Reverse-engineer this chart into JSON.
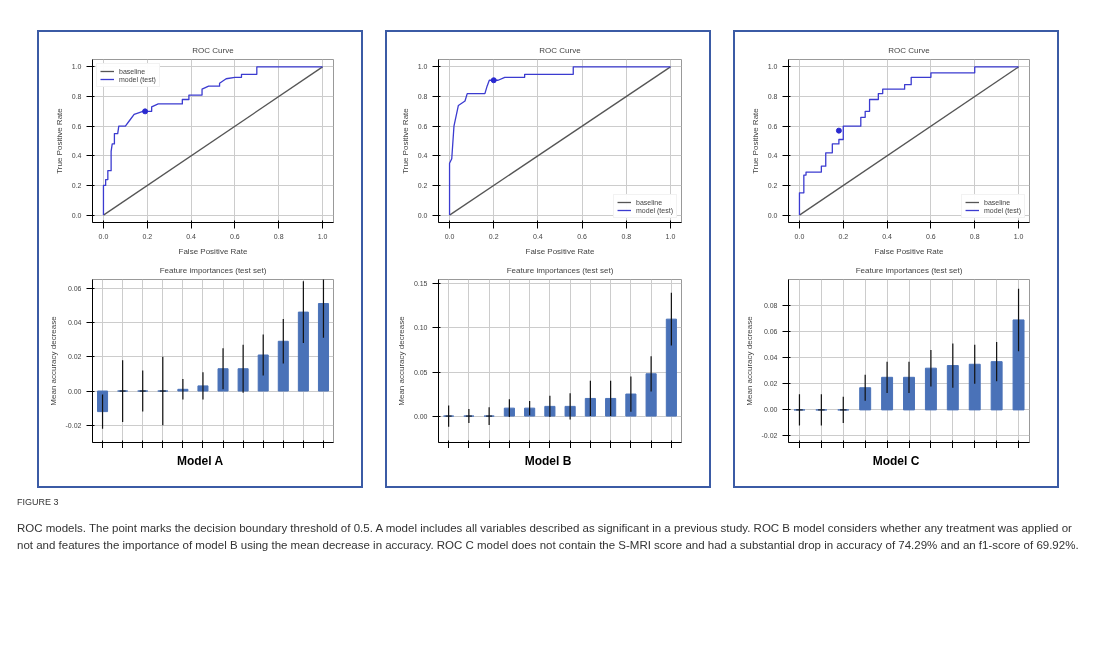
{
  "chart_data": [
    {
      "type": "line",
      "title": "ROC Curve",
      "xlabel": "False Positive Rate",
      "ylabel": "True Positive Rate",
      "xlim": [
        -0.05,
        1.05
      ],
      "ylim": [
        -0.05,
        1.05
      ],
      "xticks": [
        {
          "value": 0,
          "label": "0.0"
        },
        {
          "value": 0.2,
          "label": "0.2"
        },
        {
          "value": 0.4,
          "label": "0.4"
        },
        {
          "value": 0.6,
          "label": "0.6"
        },
        {
          "value": 0.8,
          "label": "0.8"
        },
        {
          "value": 1,
          "label": "1.0"
        }
      ],
      "yticks": [
        {
          "value": 0,
          "label": "0.0"
        },
        {
          "value": 0.2,
          "label": "0.2"
        },
        {
          "value": 0.4,
          "label": "0.4"
        },
        {
          "value": 0.6,
          "label": "0.6"
        },
        {
          "value": 0.8,
          "label": "0.8"
        },
        {
          "value": 1,
          "label": "1.0"
        }
      ],
      "grid": true,
      "legend": "top left",
      "marker": "none",
      "line_style": "solid",
      "series": [
        {
          "name": "baseline",
          "type": "line",
          "color": "#555555",
          "x": [
            0,
            1
          ],
          "values": [
            0,
            1
          ]
        },
        {
          "name": "model (test)",
          "type": "line",
          "color": "#3b3bd0",
          "x": [
            0,
            0,
            0.01,
            0.01,
            0.02,
            0.02,
            0.035,
            0.035,
            0.04,
            0.05,
            0.05,
            0.065,
            0.07,
            0.1,
            0.12,
            0.14,
            0.18,
            0.22,
            0.22,
            0.25,
            0.36,
            0.36,
            0.39,
            0.39,
            0.45,
            0.45,
            0.48,
            0.53,
            0.53,
            0.56,
            0.6,
            0.63,
            0.63,
            0.7,
            0.7,
            1
          ],
          "values": [
            0,
            0.2,
            0.2,
            0.24,
            0.24,
            0.3,
            0.3,
            0.43,
            0.48,
            0.48,
            0.55,
            0.55,
            0.6,
            0.6,
            0.64,
            0.68,
            0.7,
            0.7,
            0.73,
            0.75,
            0.75,
            0.78,
            0.78,
            0.81,
            0.81,
            0.85,
            0.87,
            0.87,
            0.89,
            0.92,
            0.93,
            0.93,
            0.95,
            0.95,
            1,
            1
          ]
        },
        {
          "type": "scatter",
          "color": "#2a2ad0",
          "x": [
            0.19
          ],
          "values": [
            0.7
          ]
        }
      ]
    },
    {
      "type": "bar",
      "title": "Feature importances (test set)",
      "ylabel": "Mean accuracy decrease",
      "categories": [
        null,
        null,
        null,
        null,
        null,
        null,
        null,
        null,
        null,
        null,
        null,
        null
      ],
      "values": [
        -0.012,
        0,
        0,
        0,
        0.001,
        0.003,
        0.013,
        0.013,
        0.021,
        0.029,
        0.046,
        0.051
      ],
      "errors": [
        0.01,
        0.018,
        0.012,
        0.02,
        0.006,
        0.008,
        0.012,
        0.014,
        0.012,
        0.013,
        0.018,
        0.02
      ],
      "color": "#4a72b8",
      "ylim": [
        -0.03,
        0.065
      ],
      "yticks": [
        {
          "value": -0.02,
          "label": "-0.02"
        },
        {
          "value": 0,
          "label": "0.00"
        },
        {
          "value": 0.02,
          "label": "0.02"
        },
        {
          "value": 0.04,
          "label": "0.04"
        },
        {
          "value": 0.06,
          "label": "0.06"
        }
      ],
      "grid": true,
      "tick_labels": "y",
      "annotations": [
        "Model A"
      ]
    },
    {
      "type": "line",
      "title": "ROC Curve",
      "xlabel": "False Positive Rate",
      "ylabel": "True Positive Rate",
      "xlim": [
        -0.05,
        1.05
      ],
      "ylim": [
        -0.05,
        1.05
      ],
      "xticks": [
        {
          "value": 0,
          "label": "0.0"
        },
        {
          "value": 0.2,
          "label": "0.2"
        },
        {
          "value": 0.4,
          "label": "0.4"
        },
        {
          "value": 0.6,
          "label": "0.6"
        },
        {
          "value": 0.8,
          "label": "0.8"
        },
        {
          "value": 1,
          "label": "1.0"
        }
      ],
      "yticks": [
        {
          "value": 0,
          "label": "0.0"
        },
        {
          "value": 0.2,
          "label": "0.2"
        },
        {
          "value": 0.4,
          "label": "0.4"
        },
        {
          "value": 0.6,
          "label": "0.6"
        },
        {
          "value": 0.8,
          "label": "0.8"
        },
        {
          "value": 1,
          "label": "1.0"
        }
      ],
      "grid": true,
      "legend": "bottom right",
      "marker": "none",
      "line_style": "solid",
      "series": [
        {
          "name": "baseline",
          "type": "line",
          "color": "#555555",
          "x": [
            0,
            1
          ],
          "values": [
            0,
            1
          ]
        },
        {
          "name": "model (test)",
          "type": "line",
          "color": "#3b3bd0",
          "x": [
            0,
            0,
            0.01,
            0.02,
            0.04,
            0.05,
            0.07,
            0.08,
            0.16,
            0.17,
            0.18,
            0.22,
            0.25,
            0.34,
            0.34,
            0.56,
            0.56,
            1
          ],
          "values": [
            0,
            0.35,
            0.38,
            0.6,
            0.74,
            0.75,
            0.77,
            0.82,
            0.82,
            0.87,
            0.91,
            0.91,
            0.93,
            0.93,
            0.95,
            0.95,
            1,
            1
          ]
        },
        {
          "type": "scatter",
          "color": "#2a2ad0",
          "x": [
            0.2
          ],
          "values": [
            0.91
          ]
        }
      ]
    },
    {
      "type": "bar",
      "title": "Feature importances (test set)",
      "ylabel": "Mean accuracy decrease",
      "categories": [
        null,
        null,
        null,
        null,
        null,
        null,
        null,
        null,
        null,
        null,
        null,
        null
      ],
      "values": [
        0,
        0,
        0,
        0.009,
        0.009,
        0.011,
        0.011,
        0.02,
        0.02,
        0.025,
        0.048,
        0.11
      ],
      "errors": [
        0.012,
        0.008,
        0.01,
        0.01,
        0.008,
        0.012,
        0.015,
        0.02,
        0.02,
        0.02,
        0.02,
        0.03
      ],
      "color": "#4a72b8",
      "ylim": [
        -0.03,
        0.155
      ],
      "yticks": [
        {
          "value": 0,
          "label": "0.00"
        },
        {
          "value": 0.05,
          "label": "0.05"
        },
        {
          "value": 0.1,
          "label": "0.10"
        },
        {
          "value": 0.15,
          "label": "0.15"
        }
      ],
      "grid": true,
      "tick_labels": "y",
      "annotations": [
        "Model B"
      ]
    },
    {
      "type": "line",
      "title": "ROC Curve",
      "xlabel": "False Positive Rate",
      "ylabel": "True Positive Rate",
      "xlim": [
        -0.05,
        1.05
      ],
      "ylim": [
        -0.05,
        1.05
      ],
      "xticks": [
        {
          "value": 0,
          "label": "0.0"
        },
        {
          "value": 0.2,
          "label": "0.2"
        },
        {
          "value": 0.4,
          "label": "0.4"
        },
        {
          "value": 0.6,
          "label": "0.6"
        },
        {
          "value": 0.8,
          "label": "0.8"
        },
        {
          "value": 1,
          "label": "1.0"
        }
      ],
      "yticks": [
        {
          "value": 0,
          "label": "0.0"
        },
        {
          "value": 0.2,
          "label": "0.2"
        },
        {
          "value": 0.4,
          "label": "0.4"
        },
        {
          "value": 0.6,
          "label": "0.6"
        },
        {
          "value": 0.8,
          "label": "0.8"
        },
        {
          "value": 1,
          "label": "1.0"
        }
      ],
      "grid": true,
      "legend": "bottom right",
      "marker": "none",
      "line_style": "solid",
      "series": [
        {
          "name": "baseline",
          "type": "line",
          "color": "#555555",
          "x": [
            0,
            1
          ],
          "values": [
            0,
            1
          ]
        },
        {
          "name": "model (test)",
          "type": "line",
          "color": "#3b3bd0",
          "x": [
            0,
            0,
            0.02,
            0.02,
            0.03,
            0.03,
            0.1,
            0.1,
            0.12,
            0.12,
            0.15,
            0.15,
            0.18,
            0.18,
            0.2,
            0.2,
            0.28,
            0.28,
            0.3,
            0.3,
            0.32,
            0.32,
            0.36,
            0.36,
            0.38,
            0.38,
            0.48,
            0.48,
            0.51,
            0.51,
            0.6,
            0.6,
            0.8,
            0.8,
            1
          ],
          "values": [
            0,
            0.15,
            0.15,
            0.27,
            0.27,
            0.29,
            0.29,
            0.33,
            0.33,
            0.42,
            0.42,
            0.48,
            0.48,
            0.51,
            0.51,
            0.6,
            0.6,
            0.66,
            0.66,
            0.7,
            0.7,
            0.78,
            0.78,
            0.82,
            0.82,
            0.85,
            0.85,
            0.88,
            0.88,
            0.93,
            0.93,
            0.96,
            0.96,
            1,
            1
          ]
        },
        {
          "type": "scatter",
          "color": "#2a2ad0",
          "x": [
            0.18
          ],
          "values": [
            0.57
          ]
        }
      ]
    },
    {
      "type": "bar",
      "title": "Feature importances (test set)",
      "ylabel": "Mean accuracy decrease",
      "categories": [
        null,
        null,
        null,
        null,
        null,
        null,
        null,
        null,
        null,
        null,
        null
      ],
      "values": [
        0,
        0,
        0,
        0.017,
        0.025,
        0.025,
        0.032,
        0.034,
        0.035,
        0.037,
        0.069
      ],
      "errors": [
        0.012,
        0.012,
        0.01,
        0.01,
        0.012,
        0.012,
        0.014,
        0.017,
        0.015,
        0.015,
        0.024
      ],
      "color": "#4a72b8",
      "ylim": [
        -0.025,
        0.1
      ],
      "yticks": [
        {
          "value": -0.02,
          "label": "-0.02"
        },
        {
          "value": 0,
          "label": "0.00"
        },
        {
          "value": 0.02,
          "label": "0.02"
        },
        {
          "value": 0.04,
          "label": "0.04"
        },
        {
          "value": 0.06,
          "label": "0.06"
        },
        {
          "value": 0.08,
          "label": "0.08"
        }
      ],
      "grid": true,
      "tick_labels": "y",
      "annotations": [
        "Model C",
        "FIGURE 3",
        "ROC models. The point marks the decision boundary threshold of 0.5. A model includes all variables described as significant in a previous study. ROC B model considers whether any treatment was applied or not and features the importance of model B using the mean decrease in accuracy. ROC C model does not contain the S-MRI score and had a substantial drop in accuracy of 74.29% and an f1-score of 69.92%."
      ]
    }
  ]
}
